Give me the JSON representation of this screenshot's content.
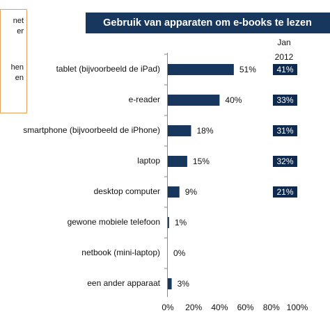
{
  "chart_data": {
    "type": "bar",
    "title": "Gebruik van apparaten om e-books te lezen",
    "side_note": [
      "net",
      "er",
      "hen",
      "en"
    ],
    "categories": [
      "tablet (bijvoorbeeld de iPad)",
      "e-reader",
      "smartphone (bijvoorbeeld de iPhone)",
      "laptop",
      "desktop computer",
      "gewone mobiele telefoon",
      "netbook (mini-laptop)",
      "een ander apparaat"
    ],
    "values": [
      51,
      40,
      18,
      15,
      9,
      1,
      0,
      3
    ],
    "value_labels": [
      "51%",
      "40%",
      "18%",
      "15%",
      "9%",
      "1%",
      "0%",
      "3%"
    ],
    "color": "#17375e",
    "comparison": {
      "header": [
        "Jan",
        "2012"
      ],
      "values": [
        41,
        33,
        31,
        32,
        21,
        null,
        null,
        null
      ],
      "value_labels": [
        "41%",
        "33%",
        "31%",
        "32%",
        "21%",
        null,
        null,
        null
      ],
      "color": "#0f2a4f"
    },
    "xlim": [
      0,
      100
    ],
    "xticks": [
      {
        "value": 0,
        "label": "0%"
      },
      {
        "value": 20,
        "label": "20%"
      },
      {
        "value": 40,
        "label": "40%"
      },
      {
        "value": 60,
        "label": "60%"
      },
      {
        "value": 80,
        "label": "80%"
      },
      {
        "value": 100,
        "label": "100%"
      }
    ],
    "grid": false
  }
}
